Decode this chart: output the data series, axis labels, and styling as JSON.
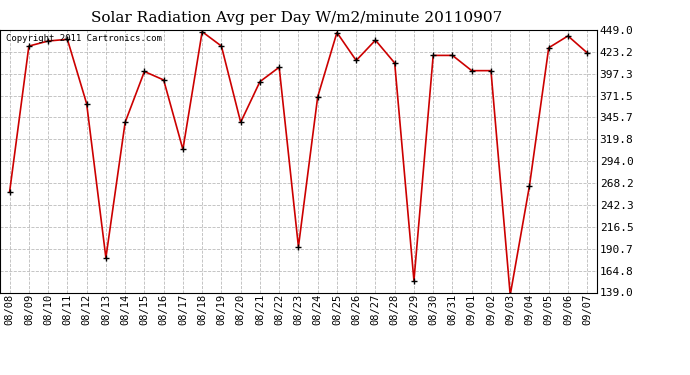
{
  "title": "Solar Radiation Avg per Day W/m2/minute 20110907",
  "copyright": "Copyright 2011 Cartronics.com",
  "labels": [
    "08/08",
    "08/09",
    "08/10",
    "08/11",
    "08/12",
    "08/13",
    "08/14",
    "08/15",
    "08/16",
    "08/17",
    "08/18",
    "08/19",
    "08/20",
    "08/21",
    "08/22",
    "08/23",
    "08/24",
    "08/25",
    "08/26",
    "08/27",
    "08/28",
    "08/29",
    "08/30",
    "08/31",
    "09/01",
    "09/02",
    "09/03",
    "09/04",
    "09/05",
    "09/06",
    "09/07"
  ],
  "values": [
    258.0,
    430.0,
    436.0,
    438.0,
    362.0,
    180.0,
    340.0,
    400.0,
    390.0,
    308.0,
    447.0,
    430.0,
    340.0,
    388.0,
    405.0,
    193.0,
    370.0,
    446.0,
    413.0,
    437.0,
    410.0,
    153.0,
    419.0,
    419.0,
    401.0,
    401.0,
    136.0,
    265.0,
    428.0,
    442.0,
    422.0
  ],
  "line_color": "#cc0000",
  "marker_color": "#000000",
  "bg_color": "#ffffff",
  "plot_bg_color": "#ffffff",
  "grid_color": "#bbbbbb",
  "yticks": [
    139.0,
    164.8,
    190.7,
    216.5,
    242.3,
    268.2,
    294.0,
    319.8,
    345.7,
    371.5,
    397.3,
    423.2,
    449.0
  ],
  "ylim": [
    139.0,
    449.0
  ],
  "title_fontsize": 11,
  "copyright_fontsize": 6.5,
  "tick_fontsize": 7.5,
  "ytick_fontsize": 8
}
